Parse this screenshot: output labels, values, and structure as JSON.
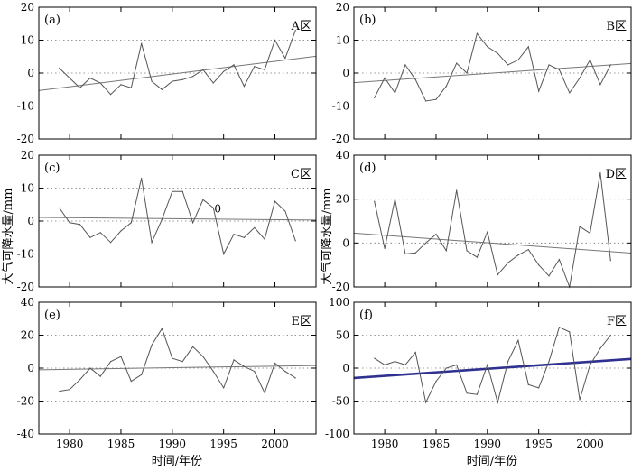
{
  "figure": {
    "ylabel": "大气可降水量/mm",
    "xlabel": "时间/年份"
  },
  "chart_data": [
    {
      "type": "line",
      "panel": "(a)",
      "region": "A区",
      "xlim": [
        1977,
        2004
      ],
      "ylim": [
        -20,
        20
      ],
      "xticks": [
        1980,
        1985,
        1990,
        1995,
        2000
      ],
      "yticks": [
        -20,
        -10,
        0,
        10,
        20
      ],
      "grid": "horizontal dotted",
      "x": [
        1979,
        1980,
        1981,
        1982,
        1983,
        1984,
        1985,
        1986,
        1987,
        1988,
        1989,
        1990,
        1991,
        1992,
        1993,
        1994,
        1995,
        1996,
        1997,
        1998,
        1999,
        2000,
        2001,
        2002
      ],
      "values": [
        1.5,
        -1.5,
        -4.5,
        -1.5,
        -3,
        -6.5,
        -3.5,
        -4.5,
        9,
        -2.5,
        -5,
        -2.5,
        -2,
        -1,
        1,
        -3,
        0.5,
        2.5,
        -4,
        2,
        1,
        10,
        4.5,
        13
      ],
      "trend": [
        -5.3,
        5.1
      ]
    },
    {
      "type": "line",
      "panel": "(b)",
      "region": "B区",
      "xlim": [
        1977,
        2004
      ],
      "ylim": [
        -20,
        20
      ],
      "xticks": [
        1980,
        1985,
        1990,
        1995,
        2000
      ],
      "yticks": [
        -20,
        -10,
        0,
        10,
        20
      ],
      "grid": "horizontal dotted",
      "x": [
        1979,
        1980,
        1981,
        1982,
        1983,
        1984,
        1985,
        1986,
        1987,
        1988,
        1989,
        1990,
        1991,
        1992,
        1993,
        1994,
        1995,
        1996,
        1997,
        1998,
        1999,
        2000,
        2001,
        2002
      ],
      "values": [
        -7.5,
        -1.5,
        -6,
        2.5,
        -2,
        -8.5,
        -8,
        -4,
        3,
        0,
        12,
        8,
        6,
        2.5,
        4,
        8,
        -5.5,
        2.5,
        1,
        -6,
        -1.5,
        4,
        -3.5,
        2.5
      ],
      "trend": [
        -2.9,
        2.9
      ]
    },
    {
      "type": "line",
      "panel": "(c)",
      "region": "C区",
      "annotation": "0",
      "xlim": [
        1977,
        2004
      ],
      "ylim": [
        -20,
        20
      ],
      "xticks": [
        1980,
        1985,
        1990,
        1995,
        2000
      ],
      "yticks": [
        -20,
        -10,
        0,
        10,
        20
      ],
      "grid": "horizontal dotted",
      "x": [
        1979,
        1980,
        1981,
        1982,
        1983,
        1984,
        1985,
        1986,
        1987,
        1988,
        1989,
        1990,
        1991,
        1992,
        1993,
        1994,
        1995,
        1996,
        1997,
        1998,
        1999,
        2000,
        2001,
        2002
      ],
      "values": [
        4,
        -0.5,
        -1,
        -5,
        -3.5,
        -6.5,
        -3,
        -0.5,
        13,
        -6.5,
        0.5,
        9,
        9,
        -0.5,
        6.5,
        4,
        -10,
        -4,
        -5,
        -2,
        -5.5,
        6,
        3,
        -6
      ],
      "trend": [
        1.1,
        0.3
      ]
    },
    {
      "type": "line",
      "panel": "(d)",
      "region": "D区",
      "xlim": [
        1977,
        2004
      ],
      "ylim": [
        -20,
        40
      ],
      "xticks": [
        1980,
        1985,
        1990,
        1995,
        2000
      ],
      "yticks": [
        -20,
        0,
        20,
        40
      ],
      "grid": "horizontal dotted",
      "x": [
        1979,
        1980,
        1981,
        1982,
        1983,
        1984,
        1985,
        1986,
        1987,
        1988,
        1989,
        1990,
        1991,
        1992,
        1993,
        1994,
        1995,
        1996,
        1997,
        1998,
        1999,
        2000,
        2001,
        2002
      ],
      "values": [
        19,
        -2.5,
        20,
        -5,
        -4.5,
        0,
        4,
        -3.5,
        24,
        -3.5,
        -6.5,
        5,
        -14.5,
        -9,
        -5.5,
        -3,
        -10,
        -15,
        -7.5,
        -20,
        7.5,
        4.5,
        32,
        -8
      ],
      "trend": [
        4.5,
        -4.6
      ]
    },
    {
      "type": "line",
      "panel": "(e)",
      "region": "E区",
      "xlim": [
        1977,
        2004
      ],
      "ylim": [
        -40,
        40
      ],
      "xticks": [
        1980,
        1985,
        1990,
        1995,
        2000
      ],
      "yticks": [
        -40,
        -20,
        0,
        20,
        40
      ],
      "grid": "horizontal dotted",
      "x": [
        1979,
        1980,
        1981,
        1982,
        1983,
        1984,
        1985,
        1986,
        1987,
        1988,
        1989,
        1990,
        1991,
        1992,
        1993,
        1994,
        1995,
        1996,
        1997,
        1998,
        1999,
        2000,
        2001,
        2002
      ],
      "values": [
        -14,
        -13,
        -7,
        0,
        -5,
        4,
        7,
        -8,
        -4,
        14,
        24,
        6,
        4,
        13,
        7,
        -2,
        -12,
        5,
        1,
        -2,
        -15,
        3,
        -2,
        -6
      ],
      "trend": [
        -1.0,
        1.6
      ]
    },
    {
      "type": "line",
      "panel": "(f)",
      "region": "F区",
      "xlim": [
        1977,
        2004
      ],
      "ylim": [
        -100,
        100
      ],
      "xticks": [
        1980,
        1985,
        1990,
        1995,
        2000
      ],
      "yticks": [
        -100,
        -50,
        0,
        50,
        100
      ],
      "grid": "horizontal dotted",
      "x": [
        1979,
        1980,
        1981,
        1982,
        1983,
        1984,
        1985,
        1986,
        1987,
        1988,
        1989,
        1990,
        1991,
        1992,
        1993,
        1994,
        1995,
        1996,
        1997,
        1998,
        1999,
        2000,
        2001,
        2002
      ],
      "values": [
        15,
        5,
        10,
        5,
        24,
        -52,
        -20,
        0,
        5,
        -38,
        -40,
        5,
        -52,
        10,
        42,
        -25,
        -30,
        10,
        62,
        55,
        -48,
        5,
        30,
        50
      ],
      "trend": [
        -15,
        14
      ],
      "trend_color": "#2e3192"
    }
  ]
}
